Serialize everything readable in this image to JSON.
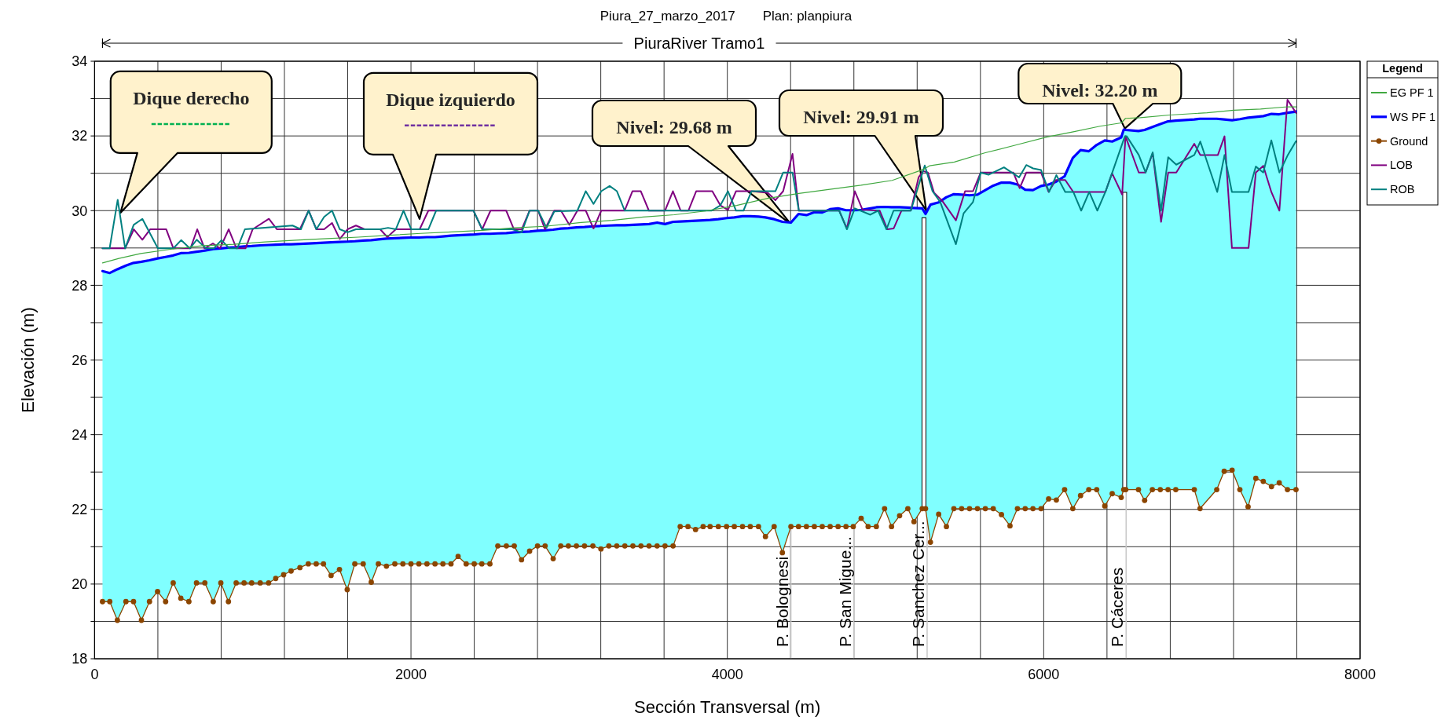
{
  "chart_data": {
    "type": "line",
    "title": "Piura_27_marzo_2017",
    "subtitle": "Plan: planpiura",
    "xlabel": "Sección Transversal (m)",
    "ylabel": "Elevación (m)",
    "legend_title": "Legend",
    "legend": "right",
    "grid": true,
    "xlim": [
      0,
      8000
    ],
    "ylim": [
      18,
      34
    ],
    "xticks": [
      0,
      {
        "value": 400,
        "label": null
      },
      {
        "value": 800,
        "label": null
      },
      {
        "value": 1200,
        "label": null
      },
      {
        "value": 1600,
        "label": null
      },
      2000,
      {
        "value": 2400,
        "label": null
      },
      {
        "value": 2800,
        "label": null
      },
      {
        "value": 3200,
        "label": null
      },
      {
        "value": 3600,
        "label": null
      },
      4000,
      {
        "value": 4400,
        "label": null
      },
      {
        "value": 4800,
        "label": null
      },
      {
        "value": 5200,
        "label": null
      },
      {
        "value": 5600,
        "label": null
      },
      6000,
      {
        "value": 6400,
        "label": null
      },
      {
        "value": 6800,
        "label": null
      },
      {
        "value": 7200,
        "label": null
      },
      {
        "value": 7600,
        "label": null
      },
      8000
    ],
    "yticks": [
      18,
      {
        "value": 19,
        "label": null
      },
      20,
      {
        "value": 21,
        "label": null
      },
      22,
      {
        "value": 23,
        "label": null
      },
      24,
      {
        "value": 25,
        "label": null
      },
      26,
      {
        "value": 27,
        "label": null
      },
      28,
      {
        "value": 29,
        "label": null
      },
      30,
      {
        "value": 31,
        "label": null
      },
      32,
      {
        "value": 33,
        "label": null
      },
      34
    ],
    "annotations": [
      "PiuraRiver Tramo1",
      "Dique derecho",
      "Dique izquierdo",
      "Nivel: 29.68 m",
      "Nivel: 29.91 m",
      {
        "text": "Nivel: 32.20 m",
        "x": 6513,
        "y": 32.2
      }
    ],
    "ref_lines": [
      {
        "axis": "x",
        "value": 4402,
        "label": "P. Bolognesi",
        "color": "#c8c8c8"
      },
      {
        "axis": "x",
        "value": 4799,
        "label": "P. San Migue...",
        "color": "#c8c8c8"
      },
      {
        "axis": "x",
        "value": 5263,
        "label": "P. Sanchez Cer...",
        "color": "#c8c8c8"
      },
      {
        "axis": "x",
        "value": 6521,
        "label": "P. Cáceres",
        "color": "#c8c8c8"
      }
    ],
    "x": [
      50,
      96,
      144,
      198,
      246,
      296,
      347,
      398,
      449,
      497,
      545,
      596,
      644,
      697,
      750,
      798,
      846,
      895,
      945,
      993,
      1047,
      1100,
      1145,
      1195,
      1242,
      1298,
      1351,
      1401,
      1447,
      1495,
      1548,
      1597,
      1645,
      1698,
      1749,
      1794,
      1845,
      1898,
      1949,
      2000,
      2050,
      2101,
      2152,
      2202,
      2253,
      2298,
      2349,
      2400,
      2448,
      2499,
      2549,
      2603,
      2653,
      2699,
      2750,
      2800,
      2848,
      2899,
      2947,
      2995,
      3046,
      3097,
      3150,
      3201,
      3251,
      3301,
      3352,
      3403,
      3454,
      3505,
      3556,
      3606,
      3657,
      3702,
      3751,
      3799,
      3847,
      3891,
      3943,
      3995,
      4044,
      4096,
      4145,
      4197,
      4241,
      4296,
      4348,
      4402,
      4450,
      4500,
      4550,
      4600,
      4650,
      4700,
      4750,
      4796,
      4846,
      4890,
      4942,
      4994,
      5038,
      5089,
      5141,
      5180,
      5232,
      5253,
      5284,
      5336,
      5385,
      5432,
      5481,
      5531,
      5581,
      5631,
      5681,
      5733,
      5787,
      5834,
      5883,
      5932,
      5983,
      6031,
      6080,
      6132,
      6184,
      6233,
      6285,
      6335,
      6386,
      6433,
      6490,
      6506,
      6519,
      6599,
      6638,
      6687,
      6737,
      6786,
      6835,
      6952,
      6988,
      7094,
      7141,
      7191,
      7240,
      7292,
      7341,
      7388,
      7440,
      7489,
      7541,
      7595
    ],
    "series": [
      {
        "name": "EG PF 1",
        "color": "#40a840",
        "x": [
          50,
          154,
          292,
          489,
          685,
          881,
          1078,
          1275,
          1471,
          1668,
          1864,
          2061,
          2258,
          2455,
          2651,
          2848,
          3076,
          3272,
          3469,
          3665,
          3862,
          4059,
          4255,
          4452,
          4648,
          4845,
          5042,
          5238,
          5278,
          5435,
          5631,
          5828,
          6017,
          6187,
          6356,
          6491,
          6517,
          6610,
          6796,
          7033,
          7202,
          7371,
          7541,
          7595
        ],
        "values": [
          28.6,
          28.72,
          28.85,
          28.97,
          29.06,
          29.1,
          29.16,
          29.21,
          29.25,
          29.29,
          29.34,
          29.39,
          29.43,
          29.47,
          29.54,
          29.58,
          29.68,
          29.74,
          29.83,
          29.89,
          29.99,
          30.14,
          30.33,
          30.46,
          30.57,
          30.68,
          30.81,
          31.1,
          31.2,
          31.3,
          31.55,
          31.76,
          31.97,
          32.11,
          32.26,
          32.35,
          32.47,
          32.49,
          32.56,
          32.62,
          32.69,
          32.72,
          32.78,
          32.78
        ]
      },
      {
        "name": "WS PF 1",
        "type": "area",
        "color": "#0000ff",
        "values": [
          28.38,
          28.33,
          28.43,
          28.53,
          28.6,
          28.63,
          28.67,
          28.72,
          28.76,
          28.8,
          28.86,
          28.87,
          28.9,
          28.93,
          28.97,
          28.99,
          29.01,
          29.02,
          29.04,
          29.05,
          29.07,
          29.08,
          29.09,
          29.1,
          29.1,
          29.11,
          29.12,
          29.13,
          29.14,
          29.15,
          29.16,
          29.17,
          29.18,
          29.2,
          29.21,
          29.23,
          29.25,
          29.26,
          29.27,
          29.28,
          29.28,
          29.29,
          29.29,
          29.31,
          29.33,
          29.34,
          29.35,
          29.36,
          29.38,
          29.38,
          29.39,
          29.4,
          29.42,
          29.43,
          29.44,
          29.46,
          29.47,
          29.49,
          29.52,
          29.53,
          29.55,
          29.56,
          29.58,
          29.59,
          29.6,
          29.61,
          29.61,
          29.62,
          29.63,
          29.64,
          29.68,
          29.64,
          29.7,
          29.71,
          29.72,
          29.73,
          29.74,
          29.75,
          29.77,
          29.8,
          29.82,
          29.85,
          29.85,
          29.84,
          29.82,
          29.77,
          29.7,
          29.68,
          29.91,
          29.88,
          29.96,
          29.95,
          30.04,
          30.06,
          30.01,
          30.01,
          30.02,
          30.05,
          30.09,
          30.1,
          30.09,
          30.09,
          30.08,
          30.07,
          30.06,
          29.91,
          30.16,
          30.22,
          30.36,
          30.44,
          30.43,
          30.41,
          30.43,
          30.55,
          30.67,
          30.75,
          30.75,
          30.7,
          30.56,
          30.55,
          30.66,
          30.7,
          30.78,
          30.92,
          31.41,
          31.62,
          31.59,
          31.76,
          31.88,
          31.85,
          31.96,
          32.17,
          32.16,
          32.13,
          32.16,
          32.24,
          32.32,
          32.39,
          32.41,
          32.44,
          32.46,
          32.46,
          32.44,
          32.42,
          32.45,
          32.49,
          32.51,
          32.53,
          32.59,
          32.58,
          32.62,
          32.65
        ]
      },
      {
        "name": "Ground",
        "color": "#8b4500",
        "marker": "circle",
        "values": [
          19.53,
          19.53,
          19.03,
          19.53,
          19.53,
          19.03,
          19.53,
          19.8,
          19.53,
          20.03,
          19.62,
          19.53,
          20.03,
          20.03,
          19.53,
          20.03,
          19.53,
          20.03,
          20.03,
          20.03,
          20.03,
          20.03,
          20.15,
          20.25,
          20.35,
          20.44,
          20.54,
          20.54,
          20.54,
          20.23,
          20.39,
          19.85,
          20.54,
          20.54,
          20.05,
          20.54,
          20.48,
          20.54,
          20.54,
          20.54,
          20.54,
          20.54,
          20.54,
          20.54,
          20.54,
          20.74,
          20.54,
          20.54,
          20.54,
          20.54,
          21.02,
          21.02,
          21.02,
          20.65,
          20.88,
          21.02,
          21.02,
          20.68,
          21.02,
          21.02,
          21.02,
          21.02,
          21.02,
          20.94,
          21.02,
          21.02,
          21.02,
          21.02,
          21.02,
          21.02,
          21.02,
          21.02,
          21.02,
          21.54,
          21.54,
          21.46,
          21.54,
          21.54,
          21.54,
          21.54,
          21.54,
          21.54,
          21.54,
          21.54,
          21.27,
          21.54,
          20.84,
          21.54,
          21.54,
          21.54,
          21.54,
          21.54,
          21.54,
          21.54,
          21.54,
          21.54,
          21.76,
          21.54,
          21.54,
          22.02,
          21.54,
          21.83,
          22.02,
          21.67,
          22.02,
          22.02,
          21.12,
          21.87,
          21.54,
          22.02,
          22.02,
          22.02,
          22.02,
          22.02,
          22.02,
          21.86,
          21.56,
          22.02,
          22.02,
          22.02,
          22.02,
          22.28,
          22.25,
          22.53,
          22.02,
          22.37,
          22.53,
          22.53,
          22.09,
          22.42,
          22.32,
          22.53,
          22.53,
          22.53,
          22.24,
          22.53,
          22.53,
          22.53,
          22.53,
          22.53,
          22.02,
          22.53,
          23.02,
          23.05,
          22.53,
          22.07,
          22.83,
          22.75,
          22.61,
          22.71,
          22.53,
          22.53
        ]
      },
      {
        "name": "LOB",
        "color": "#800080",
        "x": [
          50,
          193,
          248,
          302,
          351,
          453,
          498,
          606,
          649,
          695,
          748,
          793,
          848,
          897,
          954,
          999,
          1102,
          1153,
          1298,
          1353,
          1402,
          1451,
          1501,
          1550,
          1599,
          1652,
          1707,
          1805,
          1851,
          1904,
          2055,
          2110,
          2395,
          2450,
          2503,
          2602,
          2651,
          2700,
          2750,
          2804,
          2847,
          2906,
          2948,
          3001,
          3052,
          3105,
          3154,
          3203,
          3351,
          3400,
          3453,
          3504,
          3606,
          3656,
          3705,
          3754,
          3803,
          3905,
          3956,
          4004,
          4055,
          4153,
          4255,
          4304,
          4353,
          4412,
          4452,
          4707,
          4756,
          4806,
          4855,
          4963,
          5012,
          5051,
          5101,
          5160,
          5209,
          5238,
          5268,
          5307,
          5357,
          5445,
          5503,
          5553,
          5602,
          5808,
          5848,
          5890,
          5983,
          6031,
          6076,
          6136,
          6187,
          6390,
          6432,
          6496,
          6517,
          6601,
          6644,
          6689,
          6742,
          6787,
          6838,
          6952,
          6990,
          7101,
          7143,
          7190,
          7295,
          7341,
          7388,
          7439,
          7490,
          7541,
          7595
        ],
        "values": [
          28.99,
          28.99,
          29.5,
          29.22,
          29.5,
          29.5,
          28.99,
          28.99,
          29.5,
          28.99,
          29.12,
          28.99,
          29.5,
          28.99,
          28.99,
          29.5,
          29.78,
          29.5,
          29.5,
          30.0,
          29.5,
          29.5,
          29.67,
          29.24,
          29.5,
          29.6,
          29.5,
          29.5,
          29.29,
          29.5,
          29.5,
          30.0,
          30.0,
          29.5,
          30.0,
          30.0,
          29.5,
          29.5,
          30.0,
          30.0,
          29.5,
          30.0,
          30.0,
          29.62,
          30.0,
          30.0,
          29.52,
          30.0,
          30.0,
          30.52,
          30.52,
          30.0,
          30.0,
          30.52,
          30.0,
          30.0,
          30.52,
          30.52,
          30.14,
          30.02,
          30.52,
          30.52,
          30.48,
          30.28,
          30.52,
          31.52,
          30.0,
          30.0,
          29.52,
          30.52,
          30.02,
          30.0,
          29.5,
          29.52,
          30.0,
          30.0,
          30.89,
          31.06,
          31.02,
          30.48,
          30.27,
          29.74,
          30.52,
          30.52,
          31.02,
          31.02,
          30.6,
          31.02,
          31.02,
          30.5,
          30.82,
          30.82,
          30.5,
          30.5,
          31.0,
          30.43,
          31.99,
          31.02,
          31.02,
          31.54,
          29.7,
          31.02,
          31.02,
          31.79,
          31.49,
          31.49,
          31.99,
          29.0,
          29.0,
          31.02,
          31.2,
          30.5,
          30.0,
          32.97,
          32.62
        ]
      },
      {
        "name": "ROB",
        "color": "#008080",
        "x": [
          50,
          95,
          146,
          193,
          247,
          302,
          400,
          498,
          547,
          602,
          646,
          704,
          754,
          802,
          852,
          902,
          950,
          1251,
          1304,
          1353,
          1402,
          1451,
          1501,
          1550,
          1599,
          1652,
          1805,
          1855,
          1904,
          1953,
          2002,
          2110,
          2159,
          2395,
          2450,
          2641,
          2700,
          2750,
          2804,
          2857,
          2906,
          3052,
          3105,
          3154,
          3203,
          3256,
          3302,
          3351,
          3901,
          3956,
          4004,
          4055,
          4102,
          4153,
          4304,
          4353,
          4412,
          4452,
          4707,
          4756,
          4806,
          4904,
          4953,
          5006,
          5051,
          5160,
          5248,
          5297,
          5346,
          5445,
          5494,
          5553,
          5602,
          5651,
          5749,
          5844,
          5890,
          5933,
          5983,
          6034,
          6080,
          6136,
          6187,
          6237,
          6288,
          6339,
          6390,
          6432,
          6513,
          6525,
          6601,
          6644,
          6689,
          6742,
          6787,
          6838,
          6952,
          6990,
          7097,
          7143,
          7190,
          7295,
          7341,
          7388,
          7439,
          7490,
          7541,
          7595
        ],
        "values": [
          28.99,
          28.99,
          30.29,
          28.99,
          29.62,
          29.78,
          28.99,
          28.99,
          29.21,
          28.99,
          29.22,
          28.99,
          28.99,
          29.21,
          28.99,
          28.99,
          29.5,
          29.6,
          29.5,
          30.0,
          29.5,
          29.83,
          30.0,
          29.5,
          29.42,
          29.5,
          29.5,
          29.54,
          29.5,
          30.0,
          29.5,
          29.5,
          30.0,
          30.0,
          29.5,
          29.5,
          29.42,
          30.0,
          30.0,
          29.54,
          29.98,
          30.0,
          30.52,
          30.18,
          30.52,
          30.66,
          30.52,
          30.0,
          30.0,
          30.14,
          30.52,
          30.0,
          30.0,
          30.52,
          30.52,
          31.02,
          31.02,
          30.0,
          30.0,
          29.5,
          30.06,
          29.89,
          30.0,
          29.5,
          30.0,
          30.0,
          31.21,
          30.52,
          30.23,
          29.1,
          29.93,
          30.23,
          31.02,
          30.96,
          31.16,
          30.89,
          31.22,
          31.13,
          31.09,
          30.5,
          30.95,
          30.5,
          30.5,
          30.0,
          30.5,
          30.0,
          30.5,
          31.0,
          31.99,
          31.99,
          31.49,
          31.02,
          31.56,
          30.0,
          31.43,
          31.23,
          31.49,
          31.85,
          30.5,
          31.49,
          30.5,
          30.5,
          31.18,
          31.02,
          31.88,
          31.02,
          31.47,
          31.86
        ]
      },
      {
        "type": "bar",
        "color": "#ffffff",
        "x": [
          5243,
          6512
        ],
        "base": [
          22.02,
          22.53
        ],
        "values": [
          7.79,
          7.96
        ]
      }
    ]
  }
}
